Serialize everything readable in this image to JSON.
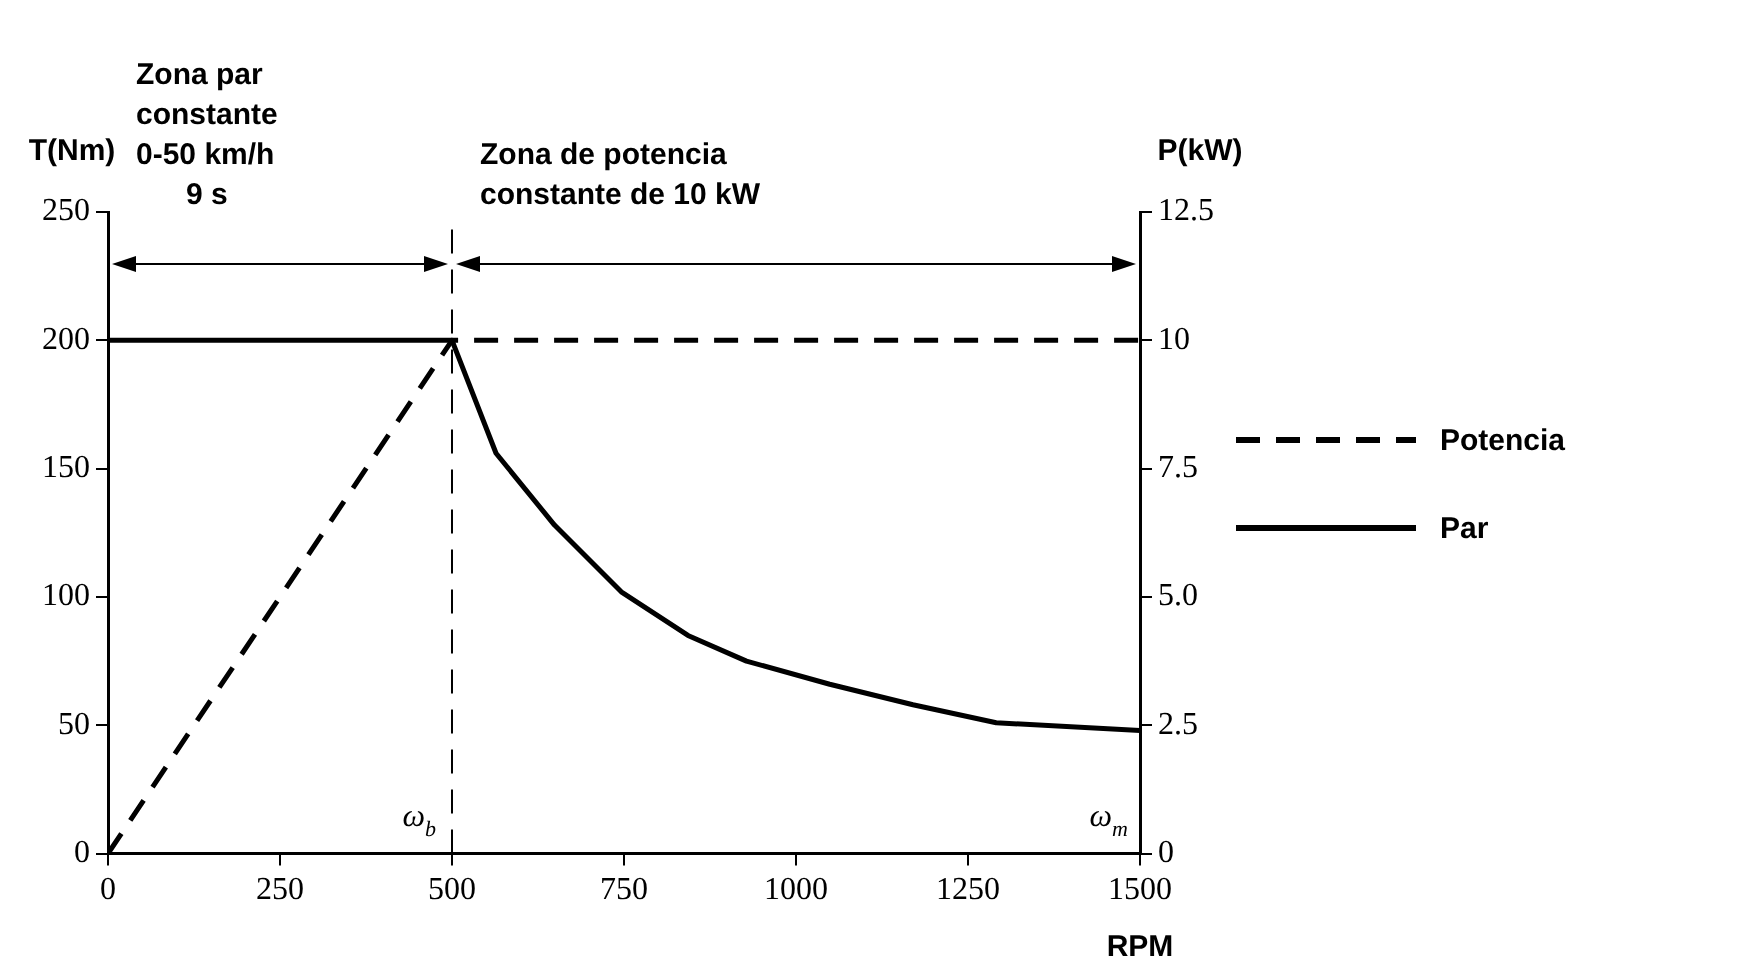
{
  "chart_data": {
    "type": "line",
    "xlabel": "RPM",
    "ylabel": "T(Nm)",
    "y2label": "P(kW)",
    "xlim": [
      0,
      1500
    ],
    "xticks": [
      0,
      250,
      500,
      750,
      1000,
      1250,
      1500
    ],
    "ylim": [
      0,
      250
    ],
    "yticks": [
      0,
      50,
      100,
      150,
      200,
      250
    ],
    "y2lim": [
      0,
      12.5
    ],
    "y2ticks": [
      0,
      2.5,
      {
        "value": 5,
        "label": "5.0"
      },
      7.5,
      10,
      12.5
    ],
    "series": [
      {
        "name": "Potencia",
        "color": "#000000",
        "line_style": "dashed",
        "axis": "y2",
        "x": [
          0,
          500,
          1500
        ],
        "values": [
          0,
          10,
          10
        ]
      },
      {
        "name": "Par",
        "color": "#000000",
        "line_style": "solid",
        "x": [
          0,
          500,
          564,
          649,
          746,
          843,
          928,
          1049,
          1170,
          1291,
          1500
        ],
        "values": [
          200,
          200,
          156,
          128,
          102,
          85,
          75,
          66,
          58,
          51,
          48
        ]
      }
    ],
    "ref_lines": [
      {
        "axis": "x",
        "value": 500,
        "line_style": "dashed",
        "label": "ω$_{b}$"
      }
    ],
    "annotations": [
      "Zona par\nconstante\n0-50 km/h\n9 s",
      "Zona de potencia\nconstante de 10 kW",
      "ω$_{m}$"
    ],
    "grid": false,
    "legend": "right",
    "marker": "none"
  }
}
